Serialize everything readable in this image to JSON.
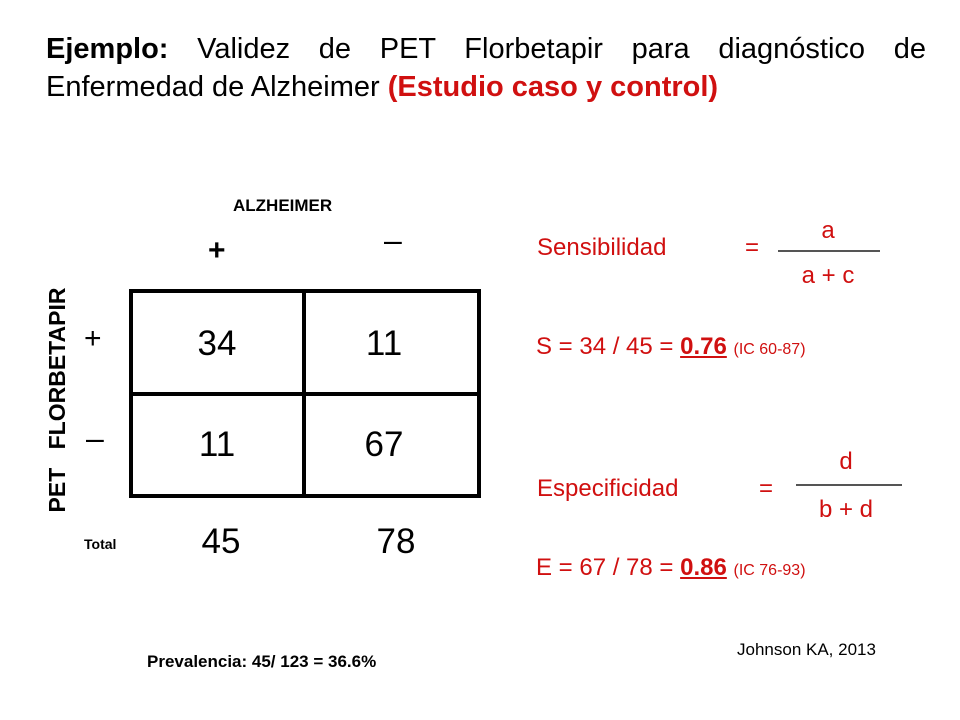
{
  "title": {
    "prefix": "Ejemplo:",
    "main": " Validez de PET Florbetapir para diagnóstico de Enfermedad de Alzheimer ",
    "highlight": "(Estudio caso y control)"
  },
  "table": {
    "column_header": "ALZHEIMER",
    "column_positive": "+",
    "column_negative": "–",
    "row_axis_label": "PET FLORBETAPIR",
    "row_positive": "+",
    "row_negative": "–",
    "cells": {
      "true_positive": "34",
      "false_positive": "11",
      "false_negative": "11",
      "true_negative": "67"
    },
    "total_label": "Total",
    "totals": {
      "positive": "45",
      "negative": "78"
    }
  },
  "sensitivity": {
    "label": "Sensibilidad",
    "equals": "=",
    "numerator": "a",
    "denominator": "a + c",
    "result_prefix": "S = 34 / 45 = ",
    "result_value": "0.76",
    "ci": "(IC 60-87)"
  },
  "specificity": {
    "label": "Especificidad",
    "equals": "=",
    "numerator": "d",
    "denominator": "b + d",
    "result_prefix": "E = 67 / 78 = ",
    "result_value": "0.86",
    "ci": "(IC 76-93)"
  },
  "prevalence": "Prevalencia: 45/ 123 = 36.6%",
  "citation": "Johnson KA, 2013",
  "colors": {
    "accent": "#d01010",
    "text": "#000000"
  }
}
